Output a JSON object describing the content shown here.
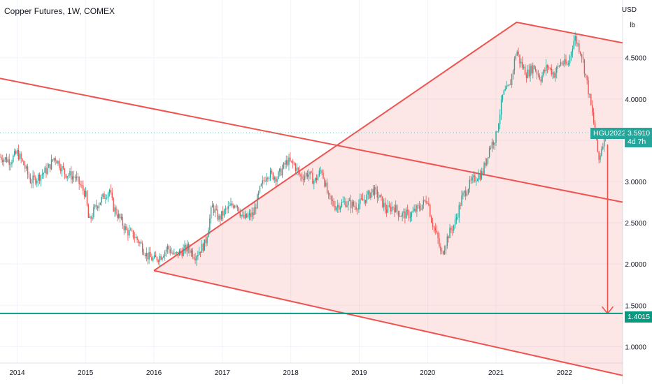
{
  "chart_data": {
    "type": "candlestick",
    "title": "Copper Futures, 1W, COMEX",
    "unit_top": "USD",
    "unit_bottom": "lb",
    "x_ticks": [
      "2014",
      "2015",
      "2016",
      "2017",
      "2018",
      "2019",
      "2020",
      "2021",
      "2022"
    ],
    "y_ticks": [
      "4.5000",
      "4.0000",
      "3.5000",
      "3.0000",
      "2.5000",
      "2.0000",
      "1.5000",
      "1.0000"
    ],
    "ylim": [
      0.8,
      5.2
    ],
    "xlim": [
      2013.75,
      2022.85
    ],
    "grid": true,
    "price_path": [
      [
        2013.75,
        3.3
      ],
      [
        2013.9,
        3.25
      ],
      [
        2014.0,
        3.35
      ],
      [
        2014.1,
        3.2
      ],
      [
        2014.2,
        3.0
      ],
      [
        2014.3,
        3.05
      ],
      [
        2014.45,
        3.15
      ],
      [
        2014.55,
        3.3
      ],
      [
        2014.7,
        3.1
      ],
      [
        2014.85,
        3.05
      ],
      [
        2015.0,
        2.85
      ],
      [
        2015.05,
        2.5
      ],
      [
        2015.15,
        2.7
      ],
      [
        2015.25,
        2.8
      ],
      [
        2015.35,
        2.9
      ],
      [
        2015.4,
        2.7
      ],
      [
        2015.5,
        2.55
      ],
      [
        2015.6,
        2.4
      ],
      [
        2015.7,
        2.35
      ],
      [
        2015.8,
        2.25
      ],
      [
        2015.9,
        2.1
      ],
      [
        2016.0,
        2.05
      ],
      [
        2016.1,
        2.1
      ],
      [
        2016.2,
        2.2
      ],
      [
        2016.3,
        2.1
      ],
      [
        2016.4,
        2.15
      ],
      [
        2016.5,
        2.2
      ],
      [
        2016.6,
        2.1
      ],
      [
        2016.75,
        2.25
      ],
      [
        2016.85,
        2.7
      ],
      [
        2016.95,
        2.55
      ],
      [
        2017.05,
        2.65
      ],
      [
        2017.2,
        2.75
      ],
      [
        2017.3,
        2.55
      ],
      [
        2017.45,
        2.6
      ],
      [
        2017.55,
        2.9
      ],
      [
        2017.65,
        3.1
      ],
      [
        2017.8,
        3.05
      ],
      [
        2017.95,
        3.25
      ],
      [
        2018.05,
        3.2
      ],
      [
        2018.15,
        3.05
      ],
      [
        2018.25,
        3.1
      ],
      [
        2018.35,
        3.0
      ],
      [
        2018.45,
        3.15
      ],
      [
        2018.55,
        2.8
      ],
      [
        2018.65,
        2.7
      ],
      [
        2018.8,
        2.75
      ],
      [
        2018.95,
        2.7
      ],
      [
        2019.1,
        2.8
      ],
      [
        2019.2,
        2.9
      ],
      [
        2019.3,
        2.8
      ],
      [
        2019.4,
        2.65
      ],
      [
        2019.5,
        2.7
      ],
      [
        2019.6,
        2.6
      ],
      [
        2019.75,
        2.6
      ],
      [
        2019.9,
        2.7
      ],
      [
        2020.0,
        2.8
      ],
      [
        2020.05,
        2.55
      ],
      [
        2020.15,
        2.3
      ],
      [
        2020.2,
        2.1
      ],
      [
        2020.3,
        2.35
      ],
      [
        2020.4,
        2.5
      ],
      [
        2020.5,
        2.8
      ],
      [
        2020.6,
        2.95
      ],
      [
        2020.7,
        3.05
      ],
      [
        2020.8,
        3.1
      ],
      [
        2020.9,
        3.4
      ],
      [
        2021.0,
        3.55
      ],
      [
        2021.1,
        4.05
      ],
      [
        2021.2,
        4.15
      ],
      [
        2021.3,
        4.6
      ],
      [
        2021.35,
        4.45
      ],
      [
        2021.45,
        4.3
      ],
      [
        2021.55,
        4.4
      ],
      [
        2021.65,
        4.25
      ],
      [
        2021.75,
        4.4
      ],
      [
        2021.85,
        4.3
      ],
      [
        2021.95,
        4.45
      ],
      [
        2022.05,
        4.4
      ],
      [
        2022.1,
        4.6
      ],
      [
        2022.15,
        4.75
      ],
      [
        2022.25,
        4.55
      ],
      [
        2022.35,
        4.1
      ],
      [
        2022.45,
        3.6
      ],
      [
        2022.5,
        3.25
      ],
      [
        2022.55,
        3.45
      ],
      [
        2022.6,
        3.59
      ]
    ],
    "series": [
      {
        "name": "HGU2022",
        "last": 3.591,
        "last_label": "3.5910",
        "countdown": "4d 7h",
        "color": "#26a69a"
      }
    ],
    "horizontal_line": {
      "value": 1.4015,
      "label": "1.4015",
      "color": "#089981"
    },
    "up_color": "#26a69a",
    "down_color": "#ef5350",
    "drawings": {
      "color": "#ef5350",
      "channel_upper": [
        [
          2013.75,
          4.25
        ],
        [
          2022.85,
          2.75
        ]
      ],
      "triangle_top": [
        [
          2016.0,
          1.92
        ],
        [
          2021.3,
          4.93
        ],
        [
          2022.85,
          4.68
        ]
      ],
      "triangle_bottom": [
        [
          2016.0,
          1.92
        ],
        [
          2022.85,
          0.65
        ]
      ],
      "arrow": [
        [
          2022.63,
          3.45
        ],
        [
          2022.63,
          1.4
        ]
      ]
    }
  }
}
